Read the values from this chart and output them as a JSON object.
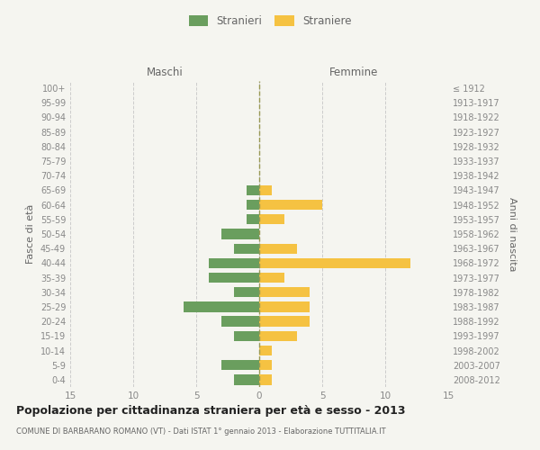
{
  "age_groups": [
    "100+",
    "95-99",
    "90-94",
    "85-89",
    "80-84",
    "75-79",
    "70-74",
    "65-69",
    "60-64",
    "55-59",
    "50-54",
    "45-49",
    "40-44",
    "35-39",
    "30-34",
    "25-29",
    "20-24",
    "15-19",
    "10-14",
    "5-9",
    "0-4"
  ],
  "birth_years": [
    "≤ 1912",
    "1913-1917",
    "1918-1922",
    "1923-1927",
    "1928-1932",
    "1933-1937",
    "1938-1942",
    "1943-1947",
    "1948-1952",
    "1953-1957",
    "1958-1962",
    "1963-1967",
    "1968-1972",
    "1973-1977",
    "1978-1982",
    "1983-1987",
    "1988-1992",
    "1993-1997",
    "1998-2002",
    "2003-2007",
    "2008-2012"
  ],
  "males": [
    0,
    0,
    0,
    0,
    0,
    0,
    0,
    1,
    1,
    1,
    3,
    2,
    4,
    4,
    2,
    6,
    3,
    2,
    0,
    3,
    2
  ],
  "females": [
    0,
    0,
    0,
    0,
    0,
    0,
    0,
    1,
    5,
    2,
    0,
    3,
    12,
    2,
    4,
    4,
    4,
    3,
    1,
    1,
    1
  ],
  "male_color": "#6a9e5e",
  "female_color": "#f5c242",
  "title": "Popolazione per cittadinanza straniera per età e sesso - 2013",
  "subtitle": "COMUNE DI BARBARANO ROMANO (VT) - Dati ISTAT 1° gennaio 2013 - Elaborazione TUTTITALIA.IT",
  "xlabel_left": "Maschi",
  "xlabel_right": "Femmine",
  "ylabel_left": "Fasce di età",
  "ylabel_right": "Anni di nascita",
  "legend_male": "Stranieri",
  "legend_female": "Straniere",
  "xlim": 15,
  "background_color": "#f5f5f0",
  "bar_height": 0.7,
  "grid_color": "#cccccc",
  "dashed_line_color": "#999955",
  "text_color": "#666666",
  "axis_text_color": "#888888"
}
